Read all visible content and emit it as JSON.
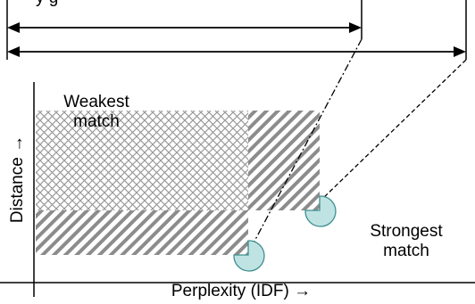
{
  "diagram": {
    "top_label_fragment": "y g",
    "weakest_label_line1": "Weakest",
    "weakest_label_line2": "match",
    "strongest_label_line1": "Strongest",
    "strongest_label_line2": "match",
    "x_axis_label": "Perplexity (IDF) →",
    "y_axis_label": "Distance →",
    "colors": {
      "line": "#000000",
      "crosshatch": "#9a9a9a",
      "diagonal": "#8c8c8c",
      "circle_fill": "#bfe3e3",
      "circle_stroke": "#3f8f8f"
    }
  }
}
